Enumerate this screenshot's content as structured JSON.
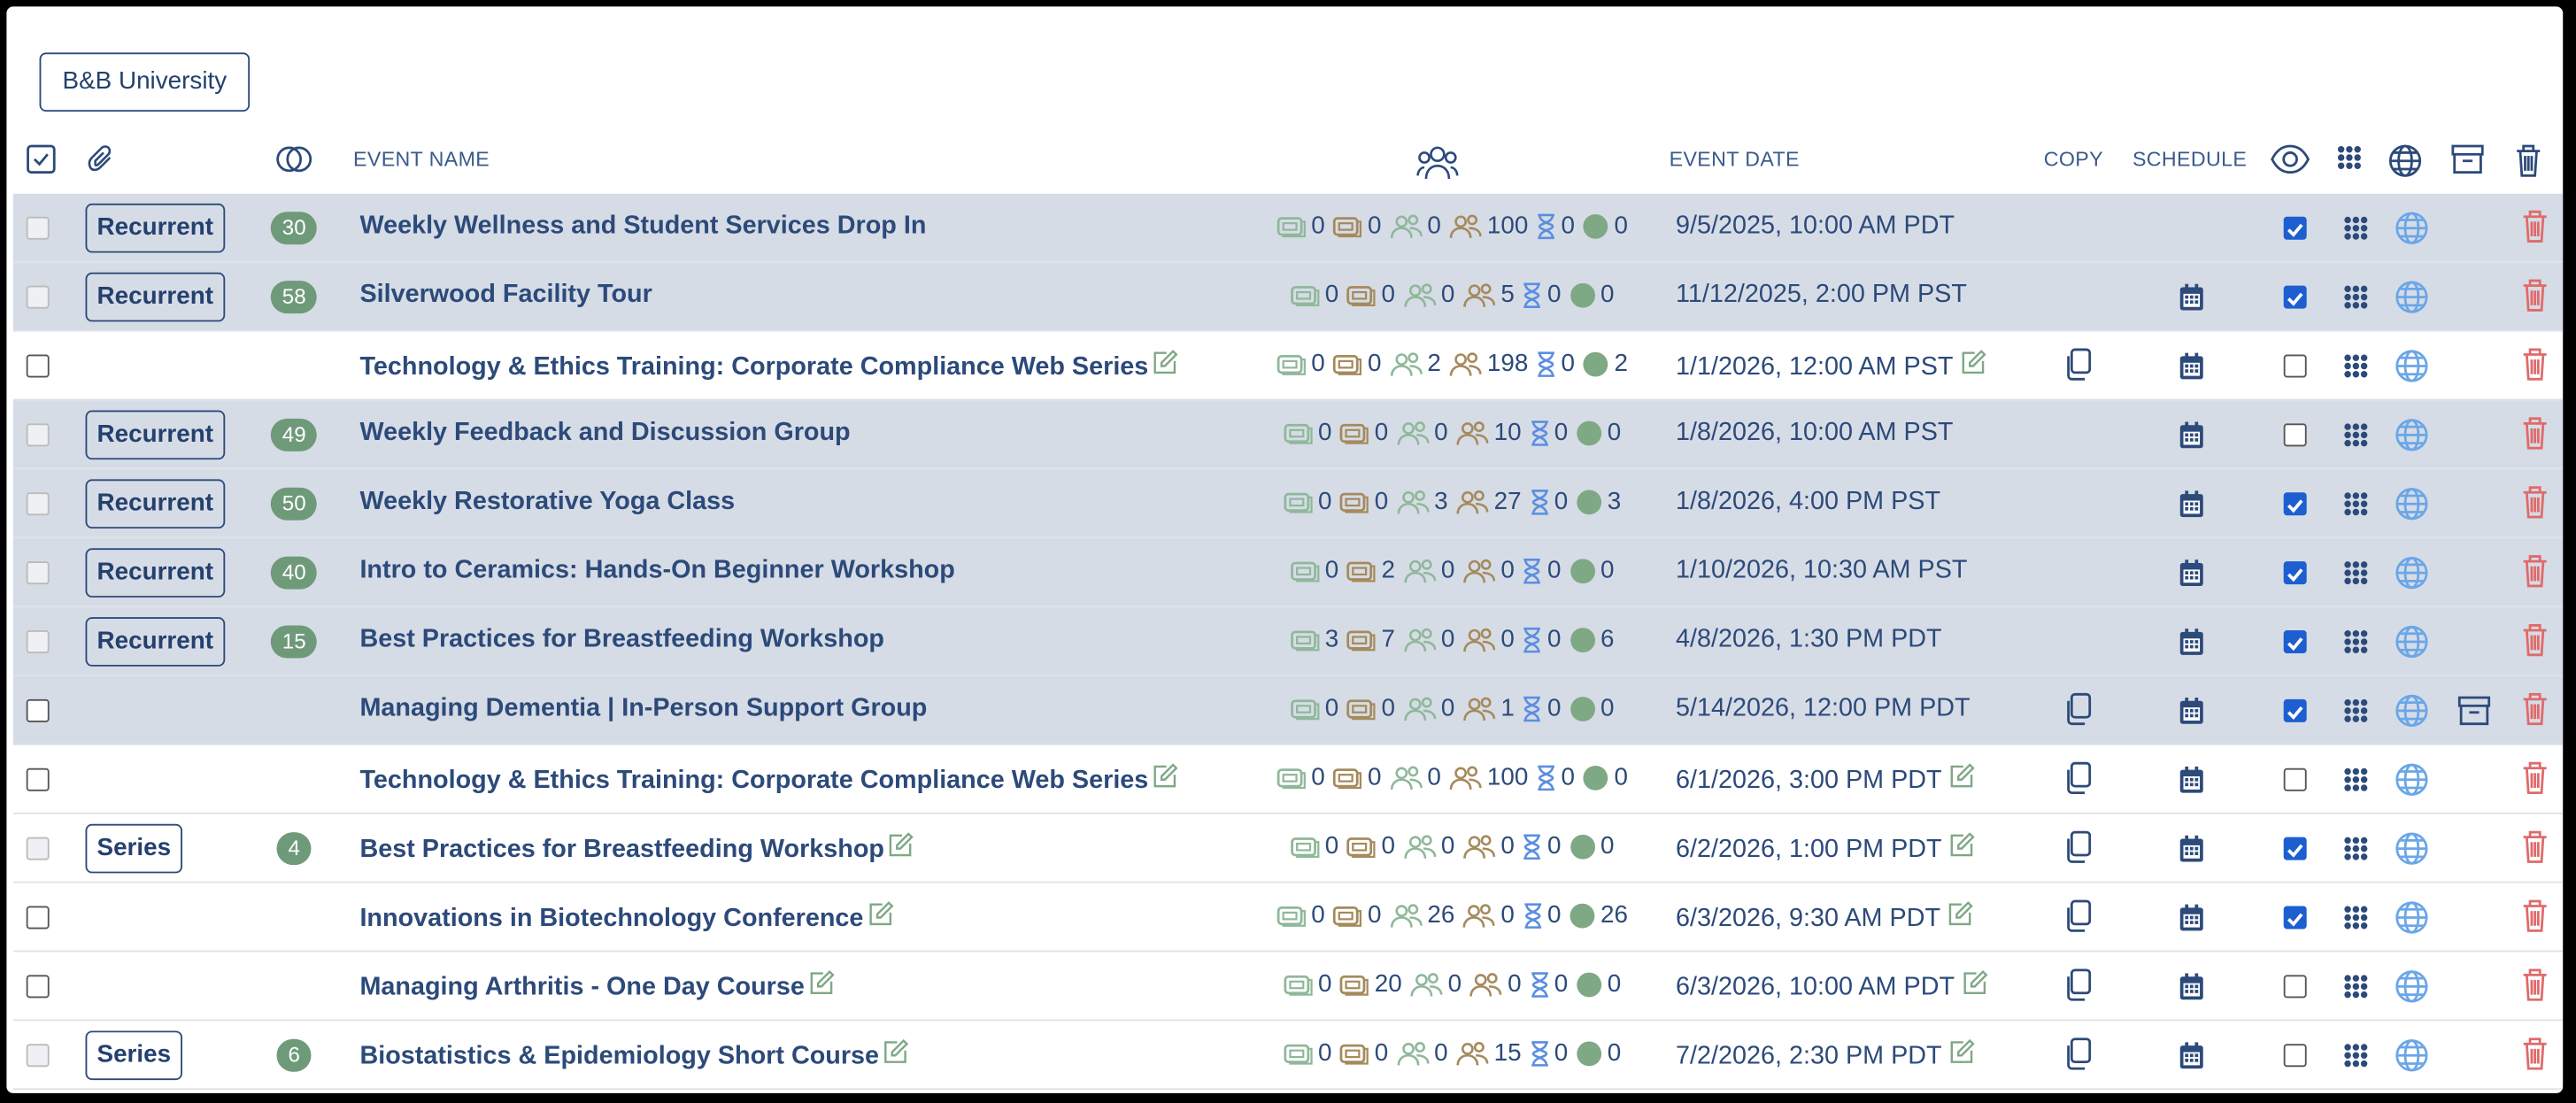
{
  "header": {
    "organization": "B&B University"
  },
  "columns": {
    "event_name": "EVENT NAME",
    "event_date": "EVENT DATE",
    "copy": "COPY",
    "schedule": "SCHEDULE"
  },
  "rows": [
    {
      "badge": "Recurrent",
      "count": "30",
      "name": "Weekly Wellness and Student Services Drop In",
      "stats": [
        "0",
        "0",
        "0",
        "100",
        "0",
        "0"
      ],
      "date": "9/5/2025, 10:00 AM PDT",
      "visible": true,
      "shaded": true,
      "editable": false,
      "copy": false,
      "schedule": false,
      "archive": false
    },
    {
      "badge": "Recurrent",
      "count": "58",
      "name": "Silverwood Facility Tour",
      "stats": [
        "0",
        "0",
        "0",
        "5",
        "0",
        "0"
      ],
      "date": "11/12/2025, 2:00 PM PST",
      "visible": true,
      "shaded": true,
      "editable": false,
      "copy": false,
      "schedule": true,
      "archive": false
    },
    {
      "name": "Technology & Ethics Training: Corporate Compliance Web Series",
      "stats": [
        "0",
        "0",
        "2",
        "198",
        "0",
        "2"
      ],
      "date": "1/1/2026, 12:00 AM PST",
      "visible": false,
      "shaded": false,
      "editable": true,
      "copy": true,
      "schedule": true,
      "archive": false
    },
    {
      "badge": "Recurrent",
      "count": "49",
      "name": "Weekly Feedback and Discussion Group",
      "stats": [
        "0",
        "0",
        "0",
        "10",
        "0",
        "0"
      ],
      "date": "1/8/2026, 10:00 AM PST",
      "visible": false,
      "shaded": true,
      "editable": false,
      "copy": false,
      "schedule": true,
      "archive": false
    },
    {
      "badge": "Recurrent",
      "count": "50",
      "name": "Weekly Restorative Yoga Class",
      "stats": [
        "0",
        "0",
        "3",
        "27",
        "0",
        "3"
      ],
      "date": "1/8/2026, 4:00 PM PST",
      "visible": true,
      "shaded": true,
      "editable": false,
      "copy": false,
      "schedule": true,
      "archive": false
    },
    {
      "badge": "Recurrent",
      "count": "40",
      "name": "Intro to Ceramics: Hands-On Beginner Workshop",
      "stats": [
        "0",
        "2",
        "0",
        "0",
        "0",
        "0"
      ],
      "date": "1/10/2026, 10:30 AM PST",
      "visible": true,
      "shaded": true,
      "editable": false,
      "copy": false,
      "schedule": true,
      "archive": false
    },
    {
      "badge": "Recurrent",
      "count": "15",
      "name": "Best Practices for Breastfeeding Workshop",
      "stats": [
        "3",
        "7",
        "0",
        "0",
        "0",
        "6"
      ],
      "date": "4/8/2026, 1:30 PM PDT",
      "visible": true,
      "shaded": true,
      "editable": false,
      "copy": false,
      "schedule": true,
      "archive": false
    },
    {
      "name": "Managing Dementia | In-Person Support Group",
      "stats": [
        "0",
        "0",
        "0",
        "1",
        "0",
        "0"
      ],
      "date": "5/14/2026, 12:00 PM PDT",
      "visible": true,
      "shaded": true,
      "editable": false,
      "copy": true,
      "schedule": true,
      "archive": true
    },
    {
      "name": "Technology & Ethics Training: Corporate Compliance Web Series",
      "stats": [
        "0",
        "0",
        "0",
        "100",
        "0",
        "0"
      ],
      "date": "6/1/2026, 3:00 PM PDT",
      "visible": false,
      "shaded": false,
      "editable": true,
      "copy": true,
      "schedule": true,
      "archive": false
    },
    {
      "badge": "Series",
      "count": "4",
      "name": "Best Practices for Breastfeeding Workshop",
      "stats": [
        "0",
        "0",
        "0",
        "0",
        "0",
        "0"
      ],
      "date": "6/2/2026, 1:00 PM PDT",
      "visible": true,
      "shaded": false,
      "editable": true,
      "copy": true,
      "schedule": true,
      "archive": false
    },
    {
      "name": "Innovations in Biotechnology Conference",
      "stats": [
        "0",
        "0",
        "26",
        "0",
        "0",
        "26"
      ],
      "date": "6/3/2026, 9:30 AM PDT",
      "visible": true,
      "shaded": false,
      "editable": true,
      "copy": true,
      "schedule": true,
      "archive": false
    },
    {
      "name": "Managing Arthritis - One Day Course",
      "stats": [
        "0",
        "20",
        "0",
        "0",
        "0",
        "0"
      ],
      "date": "6/3/2026, 10:00 AM PDT",
      "visible": false,
      "shaded": false,
      "editable": true,
      "copy": true,
      "schedule": true,
      "archive": false
    },
    {
      "badge": "Series",
      "count": "6",
      "name": "Biostatistics & Epidemiology Short Course",
      "stats": [
        "0",
        "0",
        "0",
        "15",
        "0",
        "0"
      ],
      "date": "7/2/2026, 2:30 PM PDT",
      "visible": false,
      "shaded": false,
      "editable": true,
      "copy": true,
      "schedule": true,
      "archive": false
    }
  ]
}
